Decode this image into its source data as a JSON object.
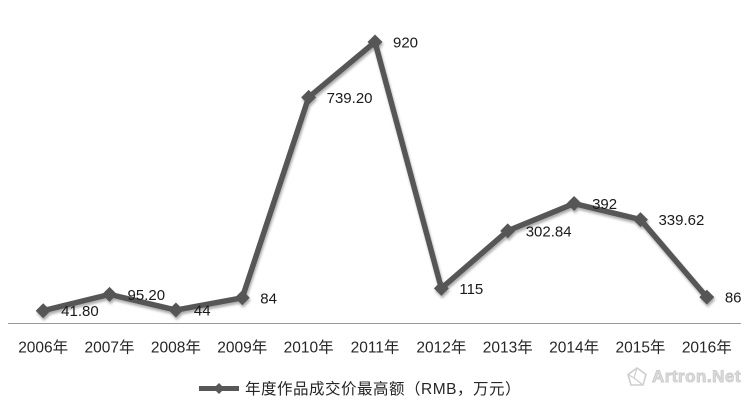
{
  "chart_data": {
    "type": "line",
    "title": "",
    "categories": [
      "2006年",
      "2007年",
      "2008年",
      "2009年",
      "2010年",
      "2011年",
      "2012年",
      "2013年",
      "2014年",
      "2015年",
      "2016年"
    ],
    "values": [
      41.8,
      95.2,
      44,
      84,
      739.2,
      920,
      115,
      302.84,
      392,
      339.62,
      86
    ],
    "point_labels": [
      "41.80",
      "95.20",
      "44",
      "84",
      "739.20",
      "920",
      "115",
      "302.84",
      "392",
      "339.62",
      "86"
    ],
    "series_name": "年度作品成交价最高额（RMB，万元）",
    "marker": "diamond",
    "line_color": "#575757",
    "label_color": "#1a1a1a",
    "axis_color": "#9a9a9a",
    "tick_color": "#262626",
    "ylim": [
      0,
      920
    ],
    "grid": false,
    "legend_position": "bottom"
  },
  "watermark": {
    "text": "Artron.Net"
  }
}
